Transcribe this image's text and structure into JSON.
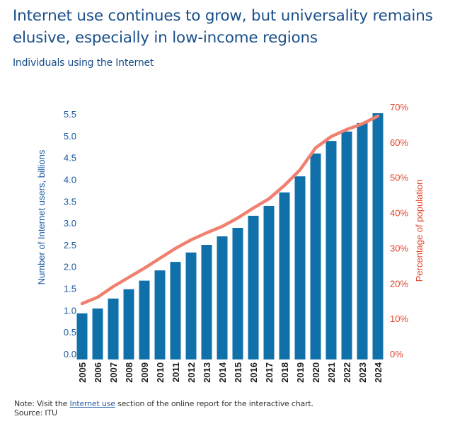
{
  "header": {
    "title": "Internet use continues to grow, but universality remains elusive, especially in low-income regions",
    "subtitle": "Individuals using the Internet"
  },
  "footer": {
    "note_prefix": "Note: Visit the ",
    "note_link": "Internet use",
    "note_suffix": " section of the online report for the interactive chart.",
    "source": "Source: ITU"
  },
  "colors": {
    "bar": "#1070aa",
    "line": "#f08070",
    "left_axis": "#1a5aa0",
    "right_axis": "#e0452a",
    "title": "#1a4f8a"
  },
  "chart_data": {
    "type": "bar+line",
    "title": "Individuals using the Internet",
    "categories": [
      "2005",
      "2006",
      "2007",
      "2008",
      "2009",
      "2010",
      "2011",
      "2012",
      "2013",
      "2014",
      "2015",
      "2016",
      "2017",
      "2018",
      "2019",
      "2020",
      "2021",
      "2022",
      "2023",
      "2024"
    ],
    "series": [
      {
        "name": "Number of Internet users, billions",
        "type": "bar",
        "axis": "left",
        "values": [
          1.03,
          1.14,
          1.36,
          1.57,
          1.76,
          1.99,
          2.18,
          2.39,
          2.56,
          2.75,
          2.94,
          3.21,
          3.43,
          3.73,
          4.09,
          4.6,
          4.88,
          5.09,
          5.28,
          5.5
        ]
      },
      {
        "name": "Percentage of population",
        "type": "line",
        "axis": "right",
        "values": [
          15.8,
          17.6,
          20.6,
          23.2,
          25.8,
          28.6,
          31.4,
          33.8,
          35.8,
          37.6,
          40.0,
          42.8,
          45.4,
          49.2,
          53.6,
          59.8,
          63.0,
          65.0,
          66.6,
          68.8
        ]
      }
    ],
    "left_axis": {
      "label": "Number of Internet users, billions",
      "ylim": [
        0,
        5.5
      ],
      "ticks": [
        "0.0",
        "0.5",
        "1.0",
        "1.5",
        "2.0",
        "2.5",
        "3.0",
        "3.5",
        "4.0",
        "4.5",
        "5.0",
        "5.5"
      ]
    },
    "right_axis": {
      "label": "Percentage of population",
      "ylim": [
        0,
        70
      ],
      "ticks": [
        "0%",
        "10%",
        "20%",
        "30%",
        "40%",
        "50%",
        "60%",
        "70%"
      ]
    },
    "xlabel": "",
    "grid": false,
    "legend": "none"
  }
}
